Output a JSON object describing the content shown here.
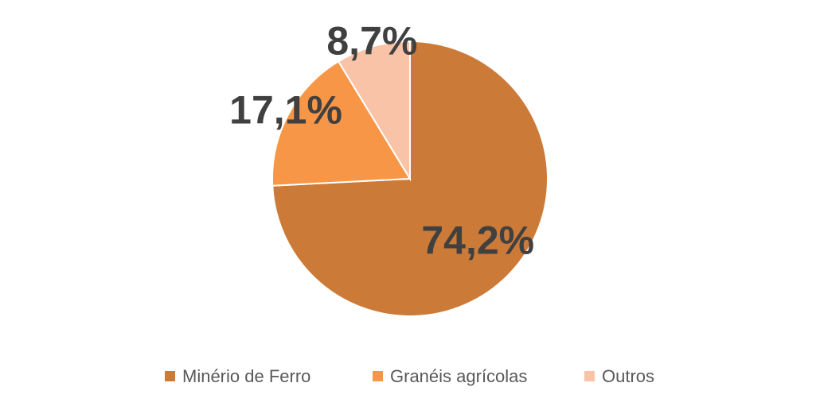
{
  "chart_data": {
    "type": "pie",
    "categories": [
      "Minério de Ferro",
      "Granéis agrícolas",
      "Outros"
    ],
    "values": [
      74.2,
      17.1,
      8.7
    ],
    "value_labels": [
      "74,2%",
      "17,1%",
      "8,7%"
    ],
    "colors": [
      "#CC7A38",
      "#F79646",
      "#F9C3A8"
    ],
    "legend": "bottom"
  }
}
